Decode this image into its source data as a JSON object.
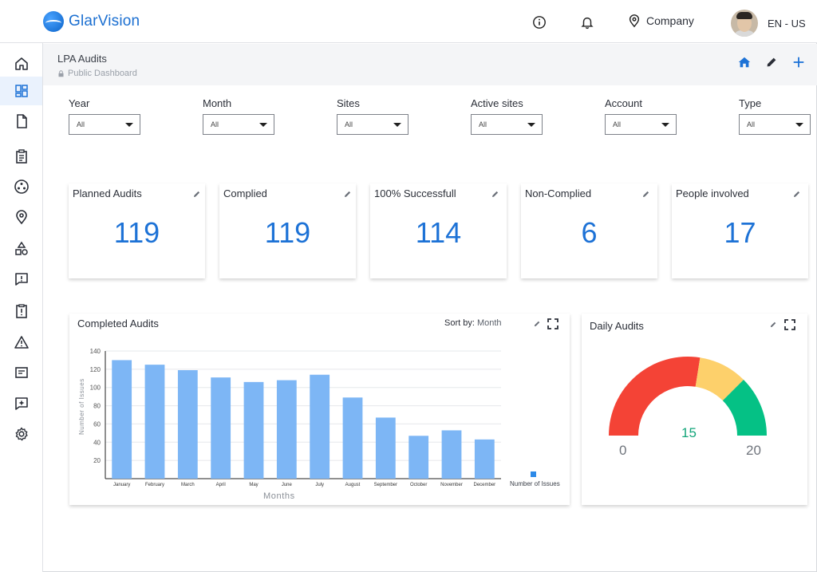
{
  "app": {
    "brand_part1": "Glar",
    "brand_part2": "Vision",
    "company": "Company",
    "language": "EN - US"
  },
  "page": {
    "title": "LPA Audits",
    "subtitle": "Public Dashboard"
  },
  "filters": [
    {
      "label": "Year",
      "value": "All"
    },
    {
      "label": "Month",
      "value": "All"
    },
    {
      "label": "Sites",
      "value": "All"
    },
    {
      "label": "Active sites",
      "value": "All"
    },
    {
      "label": "Account",
      "value": "All"
    },
    {
      "label": "Type",
      "value": "All"
    }
  ],
  "kpis": [
    {
      "title": "Planned Audits",
      "value": "119"
    },
    {
      "title": "Complied",
      "value": "119"
    },
    {
      "title": "100% Successfull",
      "value": "114"
    },
    {
      "title": "Non-Complied",
      "value": "6"
    },
    {
      "title": "People involved",
      "value": "17"
    }
  ],
  "completed_panel": {
    "title": "Completed Audits",
    "sort_label": "Sort by:",
    "sort_value": "Month"
  },
  "daily_panel": {
    "title": "Daily Audits"
  },
  "colors": {
    "accent": "#1d72d6",
    "bar": "#7db6f5",
    "gauge_red": "#f44336",
    "gauge_yellow": "#fdd06b",
    "gauge_green": "#05c185"
  },
  "chart_data": [
    {
      "type": "bar",
      "title": "",
      "xlabel": "Months",
      "ylabel": "Number of Issues",
      "categories": [
        "January",
        "February",
        "March",
        "April",
        "May",
        "June",
        "July",
        "August",
        "September",
        "October",
        "November",
        "December"
      ],
      "series": [
        {
          "name": "Number of Issues",
          "values": [
            130,
            125,
            119,
            111,
            106,
            108,
            114,
            89,
            67,
            47,
            53,
            43
          ]
        }
      ],
      "ylim": [
        0,
        140
      ],
      "yticks": [
        20,
        40,
        60,
        80,
        100,
        120,
        140
      ],
      "grid": true,
      "legend": "bottom-right"
    },
    {
      "type": "gauge",
      "value": "15",
      "min": "0",
      "max": "20",
      "bands": [
        {
          "from": 0,
          "to": 11,
          "color": "#f44336"
        },
        {
          "from": 11,
          "to": 15,
          "color": "#fdd06b"
        },
        {
          "from": 15,
          "to": 20,
          "color": "#05c185"
        }
      ]
    }
  ]
}
